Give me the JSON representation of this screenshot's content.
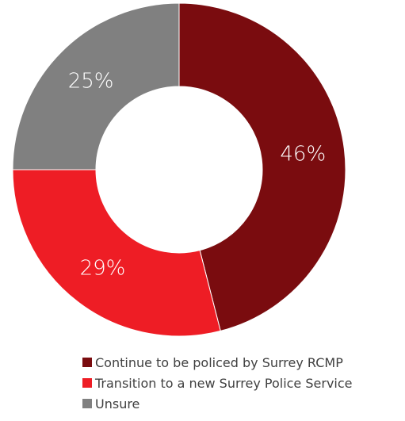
{
  "chart_data": {
    "type": "pie",
    "donut": true,
    "title": "",
    "categories": [
      "Continue to be policed by Surrey RCMP",
      "Transition to a new Surrey Police Service",
      "Unsure"
    ],
    "values": [
      46,
      29,
      25
    ],
    "labels": [
      "46%",
      "29%",
      "25%"
    ],
    "colors": [
      "#7a0c0f",
      "#ee1d25",
      "#808080"
    ],
    "legend_position": "bottom"
  }
}
